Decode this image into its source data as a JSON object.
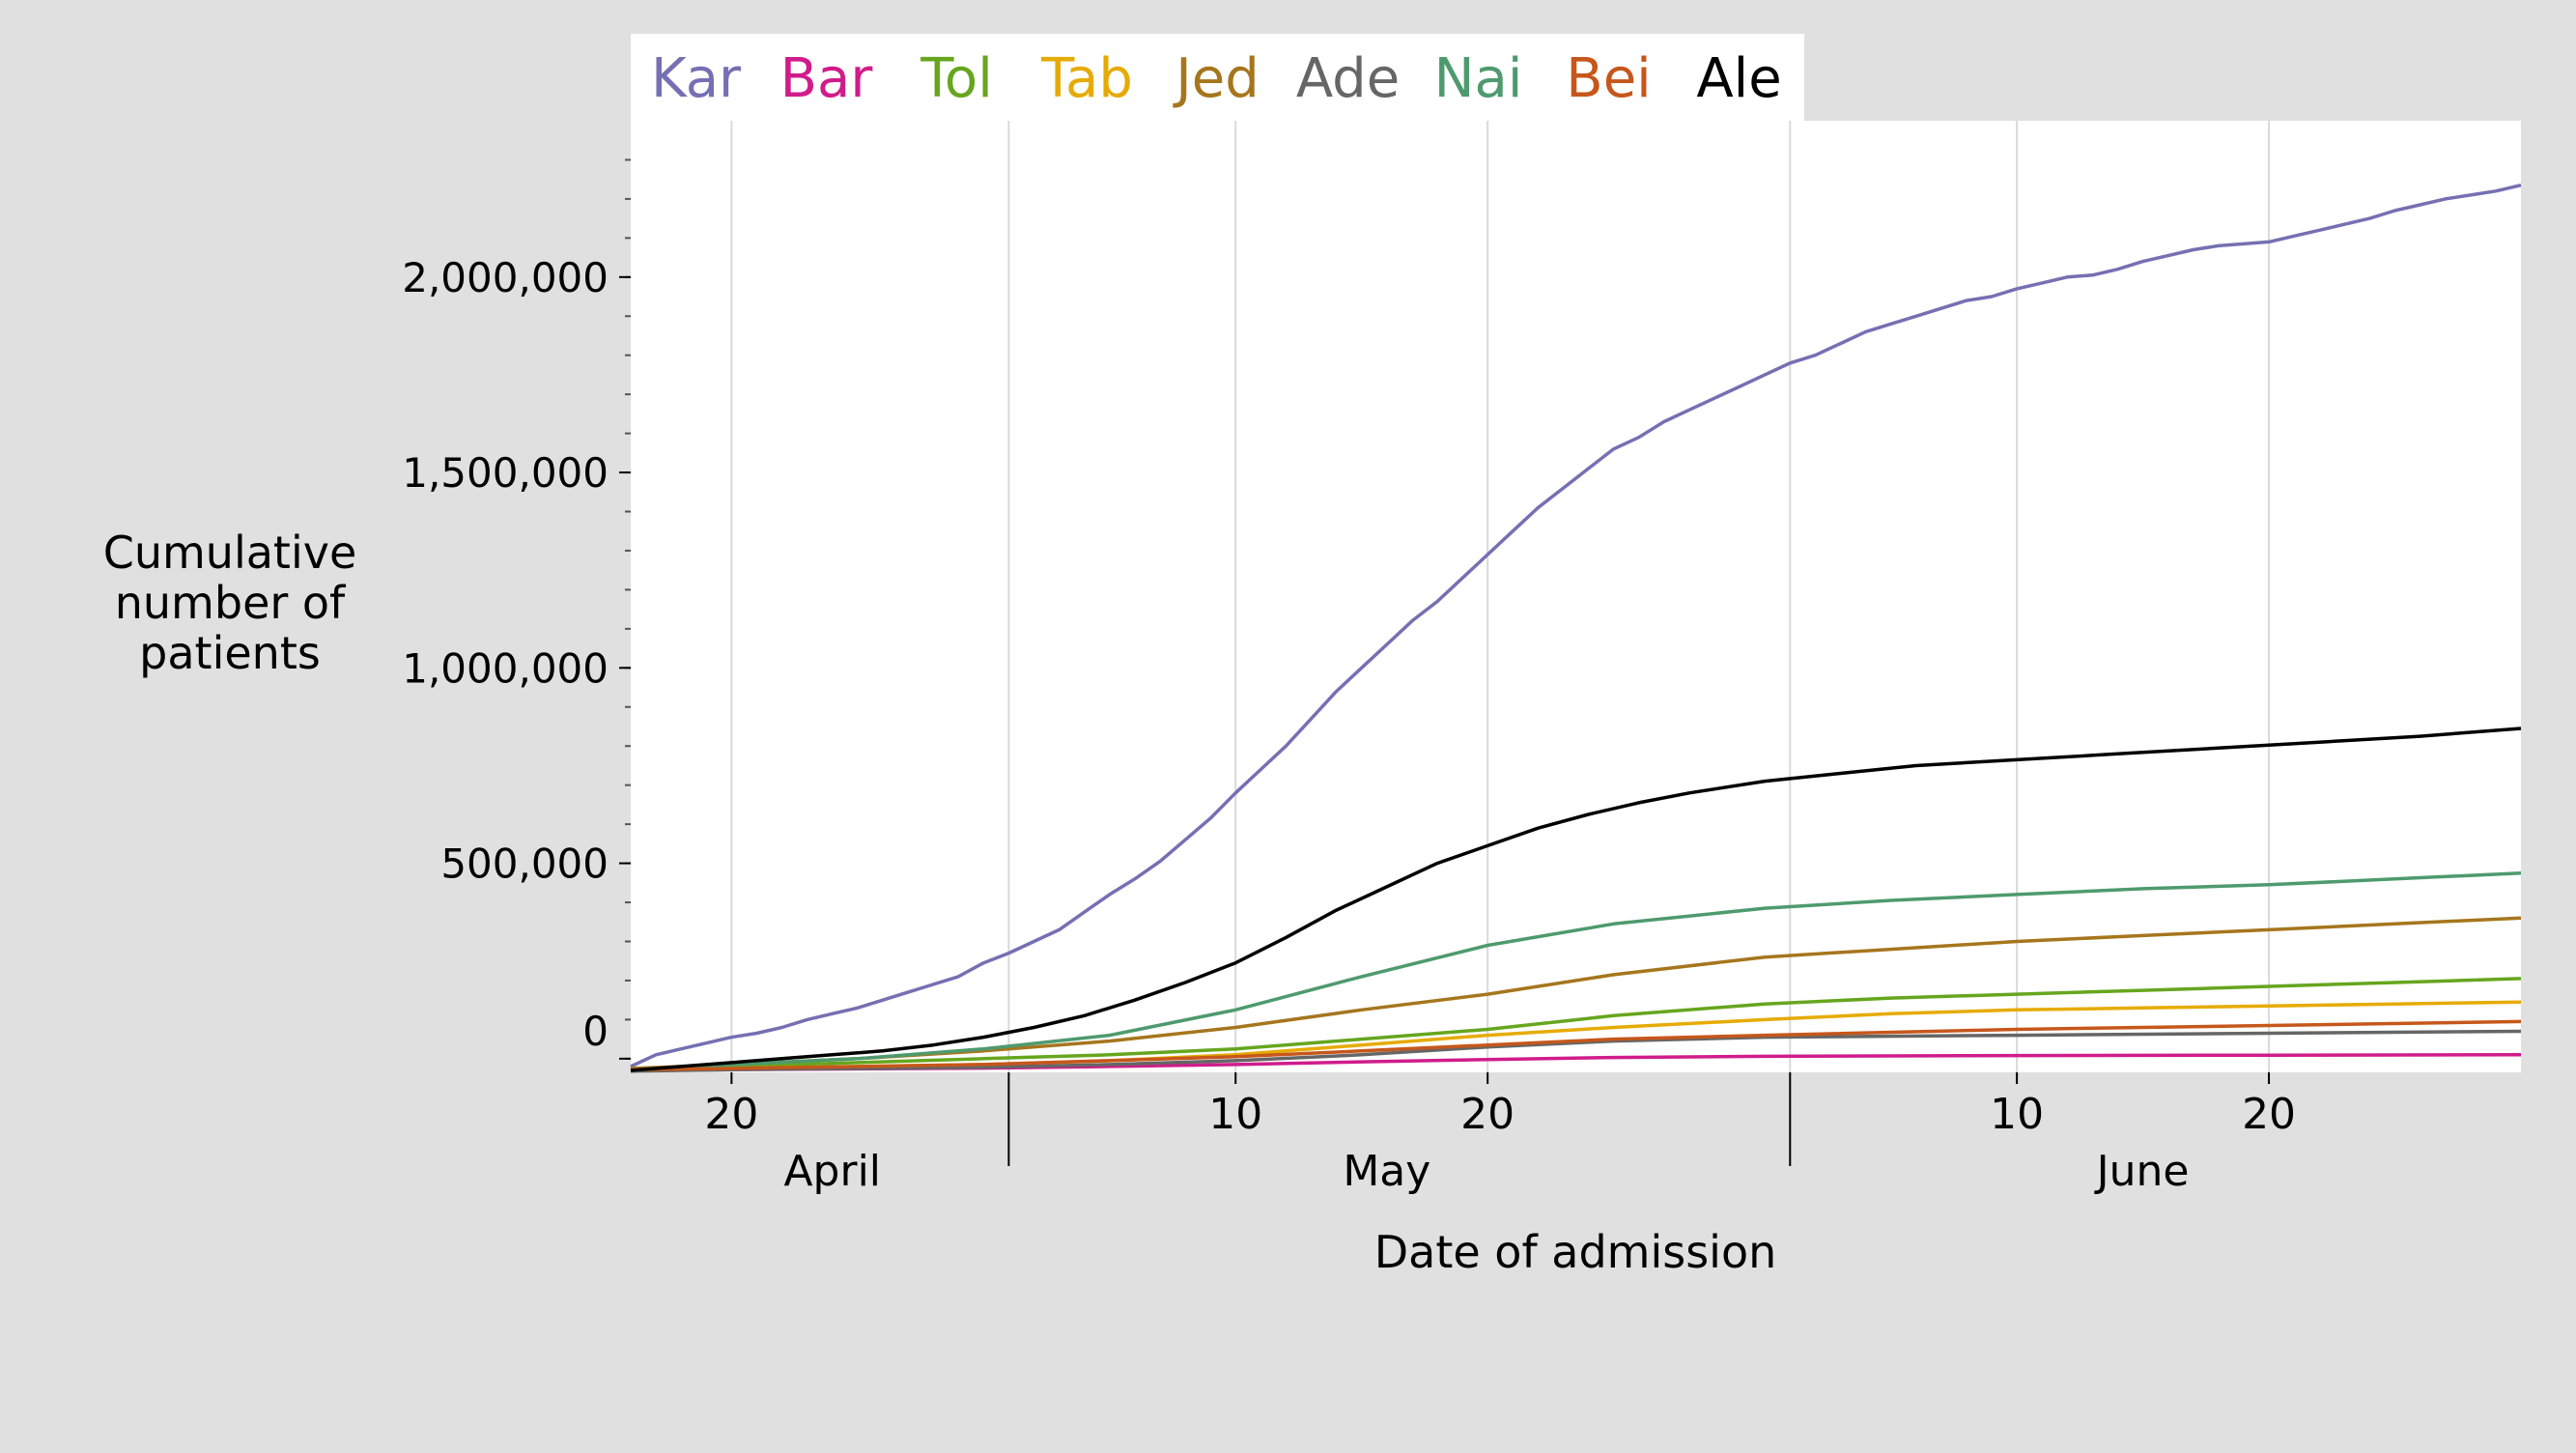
{
  "chart_data": {
    "type": "line",
    "xlabel": "Date of admission",
    "ylabel": "Cumulative number of patients",
    "ylabel_lines": [
      "Cumulative",
      "number of",
      "patients"
    ],
    "x_range": [
      "2020-04-16",
      "2020-06-30"
    ],
    "ylim": [
      -35000,
      2400000
    ],
    "y_ticks": [
      {
        "value": 0,
        "label": "0"
      },
      {
        "value": 500000,
        "label": "500,000"
      },
      {
        "value": 1000000,
        "label": "1,000,000"
      },
      {
        "value": 1500000,
        "label": "1,500,000"
      },
      {
        "value": 2000000,
        "label": "2,000,000"
      }
    ],
    "x_ticks": [
      {
        "date": "2020-04-20",
        "label": "20"
      },
      {
        "date": "2020-05-10",
        "label": "10"
      },
      {
        "date": "2020-05-20",
        "label": "20"
      },
      {
        "date": "2020-06-10",
        "label": "10"
      },
      {
        "date": "2020-06-20",
        "label": "20"
      }
    ],
    "month_separators": [
      "2020-05-01",
      "2020-06-01"
    ],
    "month_labels": [
      {
        "label": "April",
        "date": "2020-04-24"
      },
      {
        "label": "May",
        "date": "2020-05-16"
      },
      {
        "label": "June",
        "date": "2020-06-15"
      }
    ],
    "grid": "vertical",
    "legend_position": "top",
    "series": [
      {
        "name": "Kar",
        "color": "#7570b3",
        "points": [
          [
            "2020-04-16",
            -20000
          ],
          [
            "2020-04-17",
            10000
          ],
          [
            "2020-04-18",
            25000
          ],
          [
            "2020-04-19",
            40000
          ],
          [
            "2020-04-20",
            55000
          ],
          [
            "2020-04-21",
            65000
          ],
          [
            "2020-04-22",
            80000
          ],
          [
            "2020-04-23",
            100000
          ],
          [
            "2020-04-24",
            115000
          ],
          [
            "2020-04-25",
            130000
          ],
          [
            "2020-04-26",
            150000
          ],
          [
            "2020-04-27",
            170000
          ],
          [
            "2020-04-28",
            190000
          ],
          [
            "2020-04-29",
            210000
          ],
          [
            "2020-04-30",
            245000
          ],
          [
            "2020-05-01",
            270000
          ],
          [
            "2020-05-02",
            300000
          ],
          [
            "2020-05-03",
            330000
          ],
          [
            "2020-05-04",
            375000
          ],
          [
            "2020-05-05",
            420000
          ],
          [
            "2020-05-06",
            460000
          ],
          [
            "2020-05-07",
            505000
          ],
          [
            "2020-05-08",
            560000
          ],
          [
            "2020-05-09",
            615000
          ],
          [
            "2020-05-10",
            680000
          ],
          [
            "2020-05-11",
            740000
          ],
          [
            "2020-05-12",
            800000
          ],
          [
            "2020-05-13",
            870000
          ],
          [
            "2020-05-14",
            940000
          ],
          [
            "2020-05-15",
            1000000
          ],
          [
            "2020-05-16",
            1060000
          ],
          [
            "2020-05-17",
            1120000
          ],
          [
            "2020-05-18",
            1170000
          ],
          [
            "2020-05-19",
            1230000
          ],
          [
            "2020-05-20",
            1290000
          ],
          [
            "2020-05-21",
            1350000
          ],
          [
            "2020-05-22",
            1410000
          ],
          [
            "2020-05-23",
            1460000
          ],
          [
            "2020-05-24",
            1510000
          ],
          [
            "2020-05-25",
            1560000
          ],
          [
            "2020-05-26",
            1590000
          ],
          [
            "2020-05-27",
            1630000
          ],
          [
            "2020-05-28",
            1660000
          ],
          [
            "2020-05-29",
            1690000
          ],
          [
            "2020-05-30",
            1720000
          ],
          [
            "2020-05-31",
            1750000
          ],
          [
            "2020-06-01",
            1780000
          ],
          [
            "2020-06-02",
            1800000
          ],
          [
            "2020-06-03",
            1830000
          ],
          [
            "2020-06-04",
            1860000
          ],
          [
            "2020-06-05",
            1880000
          ],
          [
            "2020-06-06",
            1900000
          ],
          [
            "2020-06-07",
            1920000
          ],
          [
            "2020-06-08",
            1940000
          ],
          [
            "2020-06-09",
            1950000
          ],
          [
            "2020-06-10",
            1970000
          ],
          [
            "2020-06-11",
            1985000
          ],
          [
            "2020-06-12",
            2000000
          ],
          [
            "2020-06-13",
            2005000
          ],
          [
            "2020-06-14",
            2020000
          ],
          [
            "2020-06-15",
            2040000
          ],
          [
            "2020-06-16",
            2055000
          ],
          [
            "2020-06-17",
            2070000
          ],
          [
            "2020-06-18",
            2080000
          ],
          [
            "2020-06-19",
            2085000
          ],
          [
            "2020-06-20",
            2090000
          ],
          [
            "2020-06-21",
            2105000
          ],
          [
            "2020-06-22",
            2120000
          ],
          [
            "2020-06-23",
            2135000
          ],
          [
            "2020-06-24",
            2150000
          ],
          [
            "2020-06-25",
            2170000
          ],
          [
            "2020-06-26",
            2185000
          ],
          [
            "2020-06-27",
            2200000
          ],
          [
            "2020-06-28",
            2210000
          ],
          [
            "2020-06-29",
            2220000
          ],
          [
            "2020-06-30",
            2235000
          ]
        ]
      },
      {
        "name": "Bar",
        "color": "#d01c8b",
        "points": [
          [
            "2020-04-16",
            -30000
          ],
          [
            "2020-04-20",
            -28000
          ],
          [
            "2020-04-30",
            -24000
          ],
          [
            "2020-05-05",
            -20000
          ],
          [
            "2020-05-10",
            -15000
          ],
          [
            "2020-05-15",
            -8000
          ],
          [
            "2020-05-20",
            -2000
          ],
          [
            "2020-05-25",
            3000
          ],
          [
            "2020-05-31",
            6000
          ],
          [
            "2020-06-10",
            8000
          ],
          [
            "2020-06-20",
            9000
          ],
          [
            "2020-06-30",
            10000
          ]
        ]
      },
      {
        "name": "Tol",
        "color": "#66a61e",
        "points": [
          [
            "2020-04-16",
            -25000
          ],
          [
            "2020-04-20",
            -20000
          ],
          [
            "2020-04-25",
            -10000
          ],
          [
            "2020-04-30",
            0
          ],
          [
            "2020-05-05",
            10000
          ],
          [
            "2020-05-10",
            25000
          ],
          [
            "2020-05-15",
            50000
          ],
          [
            "2020-05-20",
            75000
          ],
          [
            "2020-05-25",
            110000
          ],
          [
            "2020-05-31",
            140000
          ],
          [
            "2020-06-05",
            155000
          ],
          [
            "2020-06-10",
            165000
          ],
          [
            "2020-06-15",
            175000
          ],
          [
            "2020-06-20",
            185000
          ],
          [
            "2020-06-25",
            195000
          ],
          [
            "2020-06-30",
            205000
          ]
        ]
      },
      {
        "name": "Tab",
        "color": "#e6ab02",
        "points": [
          [
            "2020-04-16",
            -30000
          ],
          [
            "2020-04-20",
            -25000
          ],
          [
            "2020-04-30",
            -15000
          ],
          [
            "2020-05-05",
            -5000
          ],
          [
            "2020-05-10",
            10000
          ],
          [
            "2020-05-15",
            35000
          ],
          [
            "2020-05-20",
            60000
          ],
          [
            "2020-05-25",
            80000
          ],
          [
            "2020-05-31",
            100000
          ],
          [
            "2020-06-05",
            115000
          ],
          [
            "2020-06-10",
            125000
          ],
          [
            "2020-06-15",
            130000
          ],
          [
            "2020-06-20",
            135000
          ],
          [
            "2020-06-25",
            140000
          ],
          [
            "2020-06-30",
            145000
          ]
        ]
      },
      {
        "name": "Jed",
        "color": "#a6761d",
        "points": [
          [
            "2020-04-16",
            -25000
          ],
          [
            "2020-04-20",
            -15000
          ],
          [
            "2020-04-25",
            0
          ],
          [
            "2020-04-30",
            20000
          ],
          [
            "2020-05-05",
            45000
          ],
          [
            "2020-05-10",
            80000
          ],
          [
            "2020-05-15",
            125000
          ],
          [
            "2020-05-20",
            165000
          ],
          [
            "2020-05-25",
            215000
          ],
          [
            "2020-05-31",
            260000
          ],
          [
            "2020-06-05",
            280000
          ],
          [
            "2020-06-10",
            300000
          ],
          [
            "2020-06-15",
            315000
          ],
          [
            "2020-06-20",
            330000
          ],
          [
            "2020-06-25",
            345000
          ],
          [
            "2020-06-30",
            360000
          ]
        ]
      },
      {
        "name": "Ade",
        "color": "#666666",
        "points": [
          [
            "2020-04-16",
            -32000
          ],
          [
            "2020-04-20",
            -28000
          ],
          [
            "2020-04-30",
            -22000
          ],
          [
            "2020-05-05",
            -15000
          ],
          [
            "2020-05-10",
            -5000
          ],
          [
            "2020-05-15",
            10000
          ],
          [
            "2020-05-20",
            30000
          ],
          [
            "2020-05-25",
            45000
          ],
          [
            "2020-05-31",
            55000
          ],
          [
            "2020-06-10",
            60000
          ],
          [
            "2020-06-20",
            65000
          ],
          [
            "2020-06-30",
            70000
          ]
        ]
      },
      {
        "name": "Nai",
        "color": "#4e9a6e",
        "points": [
          [
            "2020-04-16",
            -30000
          ],
          [
            "2020-04-20",
            -15000
          ],
          [
            "2020-04-25",
            0
          ],
          [
            "2020-04-30",
            25000
          ],
          [
            "2020-05-05",
            60000
          ],
          [
            "2020-05-10",
            125000
          ],
          [
            "2020-05-15",
            210000
          ],
          [
            "2020-05-20",
            290000
          ],
          [
            "2020-05-25",
            345000
          ],
          [
            "2020-05-31",
            385000
          ],
          [
            "2020-06-05",
            405000
          ],
          [
            "2020-06-10",
            420000
          ],
          [
            "2020-06-15",
            435000
          ],
          [
            "2020-06-20",
            445000
          ],
          [
            "2020-06-25",
            460000
          ],
          [
            "2020-06-30",
            475000
          ]
        ]
      },
      {
        "name": "Bei",
        "color": "#c6571b",
        "points": [
          [
            "2020-04-16",
            -28000
          ],
          [
            "2020-04-20",
            -25000
          ],
          [
            "2020-04-30",
            -15000
          ],
          [
            "2020-05-05",
            -5000
          ],
          [
            "2020-05-10",
            5000
          ],
          [
            "2020-05-15",
            20000
          ],
          [
            "2020-05-20",
            35000
          ],
          [
            "2020-05-25",
            50000
          ],
          [
            "2020-05-31",
            60000
          ],
          [
            "2020-06-10",
            75000
          ],
          [
            "2020-06-20",
            85000
          ],
          [
            "2020-06-30",
            95000
          ]
        ]
      },
      {
        "name": "Ale",
        "color": "#000000",
        "points": [
          [
            "2020-04-16",
            -30000
          ],
          [
            "2020-04-18",
            -20000
          ],
          [
            "2020-04-20",
            -10000
          ],
          [
            "2020-04-22",
            0
          ],
          [
            "2020-04-24",
            10000
          ],
          [
            "2020-04-26",
            20000
          ],
          [
            "2020-04-28",
            35000
          ],
          [
            "2020-04-30",
            55000
          ],
          [
            "2020-05-02",
            80000
          ],
          [
            "2020-05-04",
            110000
          ],
          [
            "2020-05-06",
            150000
          ],
          [
            "2020-05-08",
            195000
          ],
          [
            "2020-05-10",
            245000
          ],
          [
            "2020-05-12",
            310000
          ],
          [
            "2020-05-14",
            380000
          ],
          [
            "2020-05-16",
            440000
          ],
          [
            "2020-05-18",
            500000
          ],
          [
            "2020-05-20",
            545000
          ],
          [
            "2020-05-22",
            590000
          ],
          [
            "2020-05-24",
            625000
          ],
          [
            "2020-05-26",
            655000
          ],
          [
            "2020-05-28",
            680000
          ],
          [
            "2020-05-31",
            710000
          ],
          [
            "2020-06-03",
            730000
          ],
          [
            "2020-06-06",
            750000
          ],
          [
            "2020-06-10",
            765000
          ],
          [
            "2020-06-14",
            780000
          ],
          [
            "2020-06-18",
            795000
          ],
          [
            "2020-06-22",
            810000
          ],
          [
            "2020-06-26",
            825000
          ],
          [
            "2020-06-30",
            845000
          ]
        ]
      }
    ]
  }
}
